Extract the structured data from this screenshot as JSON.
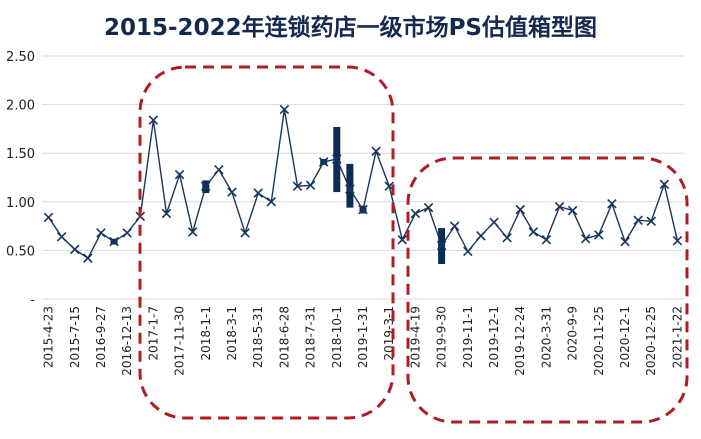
{
  "chart_data": {
    "type": "line",
    "title": "2015-2022年连锁药店一级市场PS估值箱型图",
    "y_ticks": [
      "-",
      "0.50",
      "1.00",
      "1.50",
      "2.00",
      "2.50"
    ],
    "ylim": [
      0,
      2.5
    ],
    "grid": "horizontal",
    "x_tick_labels": [
      "2015-4-23",
      "2015-7-15",
      "2016-9-27",
      "2016-12-13",
      "2017-1-7",
      "2017-11-30",
      "2018-1-1",
      "2018-3-1",
      "2018-5-31",
      "2018-6-28",
      "2018-7-31",
      "2018-10-1",
      "2019-1-31",
      "2019-3-1",
      "2019-4-19",
      "2019-9-30",
      "2019-11-1",
      "2019-12-1",
      "2019-12-24",
      "2020-3-31",
      "2020-9-9",
      "2020-11-25",
      "2020-12-1",
      "2020-12-25",
      "2021-1-22"
    ],
    "series": [
      {
        "values": [
          0.84,
          0.64,
          0.51,
          0.42,
          0.68,
          0.59,
          0.68,
          0.85,
          1.84,
          0.88,
          1.28,
          0.69,
          1.16,
          1.33,
          1.1,
          0.68,
          1.09,
          1.0,
          1.95,
          1.16,
          1.17,
          1.41,
          1.44,
          1.13,
          0.92,
          1.52,
          1.16,
          0.61,
          0.88,
          0.94,
          0.55,
          0.75,
          0.49,
          0.65,
          0.79,
          0.63,
          0.92,
          0.69,
          0.61,
          0.95,
          0.91,
          0.62,
          0.66,
          0.98,
          0.59,
          0.81,
          0.8,
          1.18,
          0.6
        ]
      }
    ],
    "boxes": [
      {
        "point_index": 5,
        "low": 0.56,
        "high": 0.62
      },
      {
        "point_index": 12,
        "low": 1.09,
        "high": 1.22
      },
      {
        "point_index": 21,
        "low": 1.38,
        "high": 1.44
      },
      {
        "point_index": 22,
        "low": 1.1,
        "high": 1.77
      },
      {
        "point_index": 23,
        "low": 0.94,
        "high": 1.39
      },
      {
        "point_index": 24,
        "low": 0.88,
        "high": 0.96
      },
      {
        "point_index": 30,
        "low": 0.36,
        "high": 0.73
      }
    ],
    "line_color": "#17365d",
    "box_color": "#0f2a55",
    "highlight_color": "#b01c24"
  }
}
